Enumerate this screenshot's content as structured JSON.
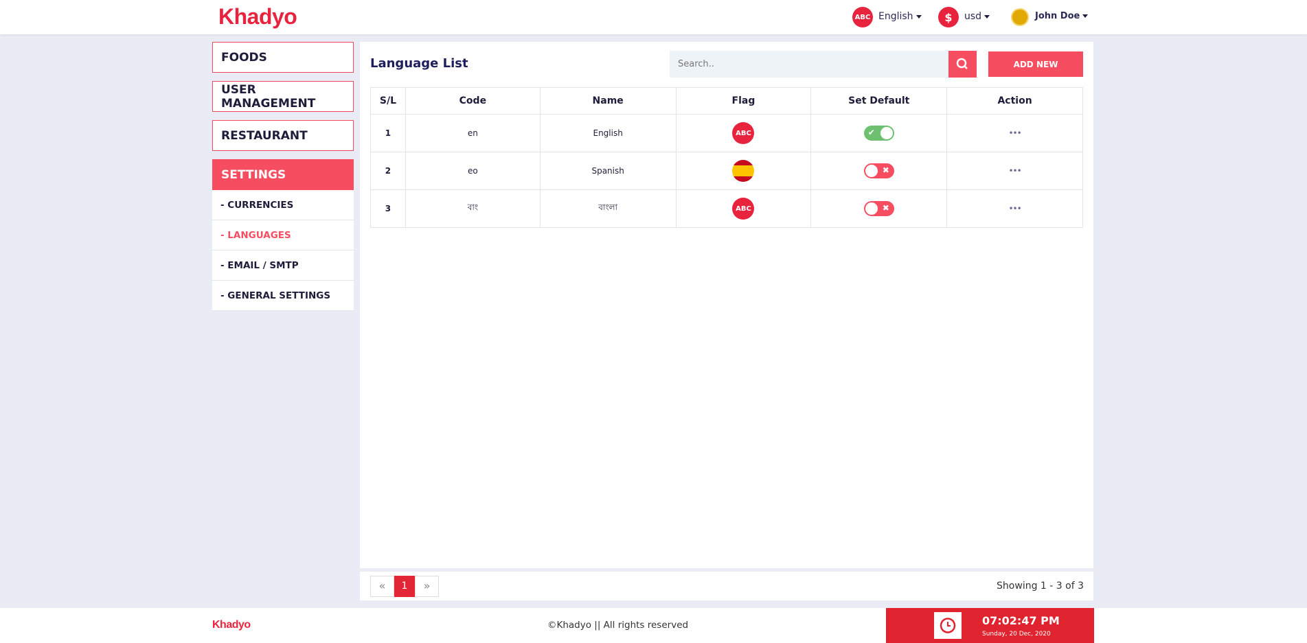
{
  "header": {
    "logo": "Khadyo",
    "language_icon": "ABC",
    "language": "English",
    "currency_icon": "$",
    "currency": "usd",
    "user": "John Doe"
  },
  "sidebar": {
    "menu": [
      "FOODS",
      "USER MANAGEMENT",
      "RESTAURANT",
      "SETTINGS"
    ],
    "submenu": [
      "- CURRENCIES",
      "- LANGUAGES",
      "- EMAIL / SMTP",
      "- GENERAL SETTINGS"
    ]
  },
  "page": {
    "title": "Language List",
    "search_placeholder": "Search..",
    "add_button": "ADD NEW"
  },
  "table": {
    "columns": [
      "S/L",
      "Code",
      "Name",
      "Flag",
      "Set Default",
      "Action"
    ],
    "rows": [
      {
        "sl": 1,
        "code": "en",
        "name": "English",
        "flag": "ABC",
        "default": true
      },
      {
        "sl": 2,
        "code": "eo",
        "name": "Spanish",
        "default": false
      },
      {
        "sl": 3,
        "code": "বাং",
        "name": "বাংলা",
        "flag": "ABC",
        "default": false
      }
    ]
  },
  "pagination": {
    "current": "1",
    "summary": "Showing 1 - 3 of 3"
  },
  "footer": {
    "logo": "Khadyo",
    "copyright": "©Khadyo || All rights reserved",
    "time": "07:02:47 PM",
    "date": "Sunday, 20 Dec, 2020"
  }
}
